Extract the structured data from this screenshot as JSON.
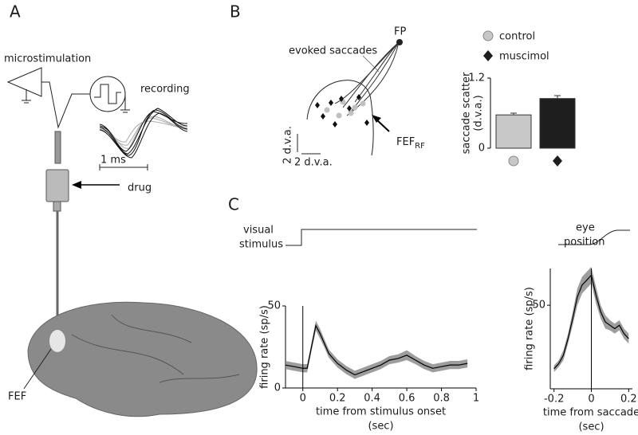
{
  "panel_labels": [
    "A",
    "B",
    "C"
  ],
  "panel_a": {
    "microstimulation": "microstimulation",
    "recording": "recording",
    "scale": "1 ms",
    "drug": "drug",
    "area": "FEF"
  },
  "panel_b": {
    "fixation": "FP",
    "saccades": "evoked saccades",
    "scale_y": "2 d.v.a.",
    "scale_x": "2 d.v.a.",
    "rf_label": "FEF",
    "rf_subscript": "RF"
  },
  "panel_c": {
    "stimulus_line1": "visual",
    "stimulus_line2": "stimulus",
    "eye_line1": "eye",
    "eye_line2": "position"
  },
  "chart_data": [
    {
      "type": "bar",
      "ylabel": "saccade scatter",
      "ylabel_unit": "(d.v.a.)",
      "categories": [
        null,
        null
      ],
      "legend": [
        "control",
        "muscimol"
      ],
      "values": [
        0.57,
        0.85
      ],
      "errors": [
        0.03,
        0.05
      ],
      "colors": [
        "#c8c8c8",
        "#1e1e1e"
      ],
      "ylim": [
        0,
        1.2
      ],
      "yticks": [
        0,
        1.2
      ]
    },
    {
      "type": "line",
      "ylabel": "firing rate (sp/s)",
      "xlabel": "time from stimulus onset",
      "xlabel_unit": "(sec)",
      "x": [
        -0.1,
        -0.05,
        0,
        0.025,
        0.05,
        0.075,
        0.1,
        0.125,
        0.15,
        0.2,
        0.25,
        0.3,
        0.35,
        0.4,
        0.45,
        0.5,
        0.55,
        0.6,
        0.65,
        0.7,
        0.75,
        0.8,
        0.85,
        0.9,
        0.95
      ],
      "values": [
        14,
        13,
        12,
        12,
        25,
        38,
        33,
        27,
        21,
        15,
        11,
        8,
        10,
        12,
        14,
        17,
        18,
        20,
        17,
        14,
        12,
        13,
        14,
        14,
        15
      ],
      "errors": [
        2.5,
        2.5,
        2.5,
        2.5,
        2.5,
        3,
        3,
        2.5,
        2.5,
        2.5,
        2.5,
        2.5,
        2.5,
        2.5,
        2.5,
        2.5,
        2.5,
        3,
        2.5,
        2.5,
        2.5,
        2.5,
        2.5,
        2.5,
        2.5
      ],
      "color": "#000000",
      "band_color": "#8c8c8c",
      "xlim": [
        -0.1,
        1
      ],
      "xticks": [
        0,
        0.2,
        0.4,
        0.6,
        0.8,
        1
      ],
      "ylim": [
        0,
        50
      ],
      "yticks": [
        0,
        50
      ],
      "event_line": 0
    },
    {
      "type": "line",
      "ylabel": "firing rate (sp/s)",
      "xlabel": "time from saccade",
      "xlabel_unit": "(sec)",
      "x": [
        -0.2,
        -0.175,
        -0.15,
        -0.125,
        -0.1,
        -0.075,
        -0.05,
        -0.025,
        0,
        0.025,
        0.05,
        0.075,
        0.1,
        0.125,
        0.15,
        0.175,
        0.2
      ],
      "values": [
        12,
        15,
        20,
        30,
        42,
        55,
        62,
        65,
        68,
        56,
        46,
        40,
        38,
        36,
        38,
        33,
        30
      ],
      "errors": [
        2,
        2,
        3,
        3,
        4,
        5,
        5,
        5,
        5,
        5,
        4,
        4,
        3,
        3,
        3,
        3,
        3
      ],
      "color": "#000000",
      "band_color": "#8c8c8c",
      "xlim": [
        -0.22,
        0.22
      ],
      "xticks": [
        -0.2,
        0,
        0.2
      ],
      "ylim": [
        0,
        72
      ],
      "yticks": [
        50
      ],
      "event_line": 0
    }
  ]
}
